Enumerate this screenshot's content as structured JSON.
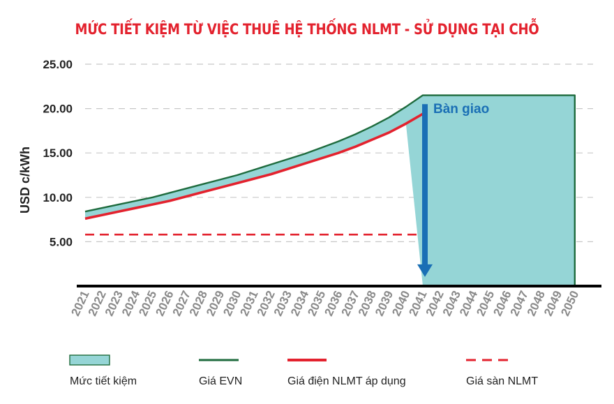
{
  "chart_data": {
    "type": "area",
    "title": "MỨC TIẾT KIỆM TỪ VIỆC THUÊ HỆ THỐNG NLMT - SỬ DỤNG TẠI CHỖ",
    "ylabel": "USD c/kWh",
    "xlabel": "",
    "ylim": [
      0,
      25
    ],
    "yticks": [
      "25.00",
      "20.00",
      "15.00",
      "10.00",
      "5.00"
    ],
    "ytick_values": [
      25,
      20,
      15,
      10,
      5
    ],
    "grid": "horizontal dashed",
    "categories": [
      "2021",
      "2022",
      "2023",
      "2024",
      "2025",
      "2026",
      "2027",
      "2028",
      "2029",
      "2030",
      "2031",
      "2032",
      "2033",
      "2034",
      "2035",
      "2036",
      "2037",
      "2038",
      "2039",
      "2040",
      "2041",
      "2042",
      "2043",
      "2044",
      "2045",
      "2046",
      "2047",
      "2048",
      "2049",
      "2050"
    ],
    "series": [
      {
        "name": "Giá EVN",
        "style": "line",
        "color": "#1e6b3d",
        "values": [
          8.4,
          8.8,
          9.2,
          9.6,
          10.0,
          10.5,
          11.0,
          11.5,
          12.0,
          12.5,
          13.1,
          13.7,
          14.3,
          14.9,
          15.6,
          16.3,
          17.1,
          18.0,
          19.0,
          20.2,
          21.5,
          21.5,
          21.5,
          21.5,
          21.5,
          21.5,
          21.5,
          21.5,
          21.5,
          21.5
        ]
      },
      {
        "name": "Giá điện NLMT áp dụng",
        "style": "line",
        "color": "#e3222e",
        "values": [
          7.6,
          8.0,
          8.4,
          8.8,
          9.2,
          9.6,
          10.1,
          10.6,
          11.1,
          11.6,
          12.1,
          12.6,
          13.2,
          13.8,
          14.4,
          15.0,
          15.7,
          16.5,
          17.3,
          18.3,
          19.4,
          0,
          null,
          null,
          null,
          null,
          null,
          null,
          null,
          null
        ]
      },
      {
        "name": "Giá sàn NLMT",
        "style": "dashed",
        "color": "#e3222e",
        "values": [
          5.8,
          5.8,
          5.8,
          5.8,
          5.8,
          5.8,
          5.8,
          5.8,
          5.8,
          5.8,
          5.8,
          5.8,
          5.8,
          5.8,
          5.8,
          5.8,
          5.8,
          5.8,
          5.8,
          5.8,
          5.8,
          0,
          null,
          null,
          null,
          null,
          null,
          null,
          null,
          null
        ]
      }
    ],
    "fill": {
      "name": "Mức tiết kiệm",
      "color": "#95d5d6",
      "between": [
        "Giá EVN",
        "Giá điện NLMT áp dụng"
      ]
    },
    "annotation": {
      "text": "Bàn giao",
      "at_category": "2041",
      "arrow_from": 20.5,
      "arrow_to": 1.5,
      "color": "#1a6fb5"
    },
    "legend": {
      "placement": "bottom",
      "items": [
        {
          "label": "Mức tiết kiệm",
          "kind": "fill",
          "color": "#95d5d6"
        },
        {
          "label": "Giá EVN",
          "kind": "line",
          "color": "#1e6b3d"
        },
        {
          "label": "Giá điện NLMT áp dụng",
          "kind": "line",
          "color": "#e3222e"
        },
        {
          "label": "Giá sàn NLMT",
          "kind": "dashed",
          "color": "#e3222e"
        }
      ]
    }
  }
}
